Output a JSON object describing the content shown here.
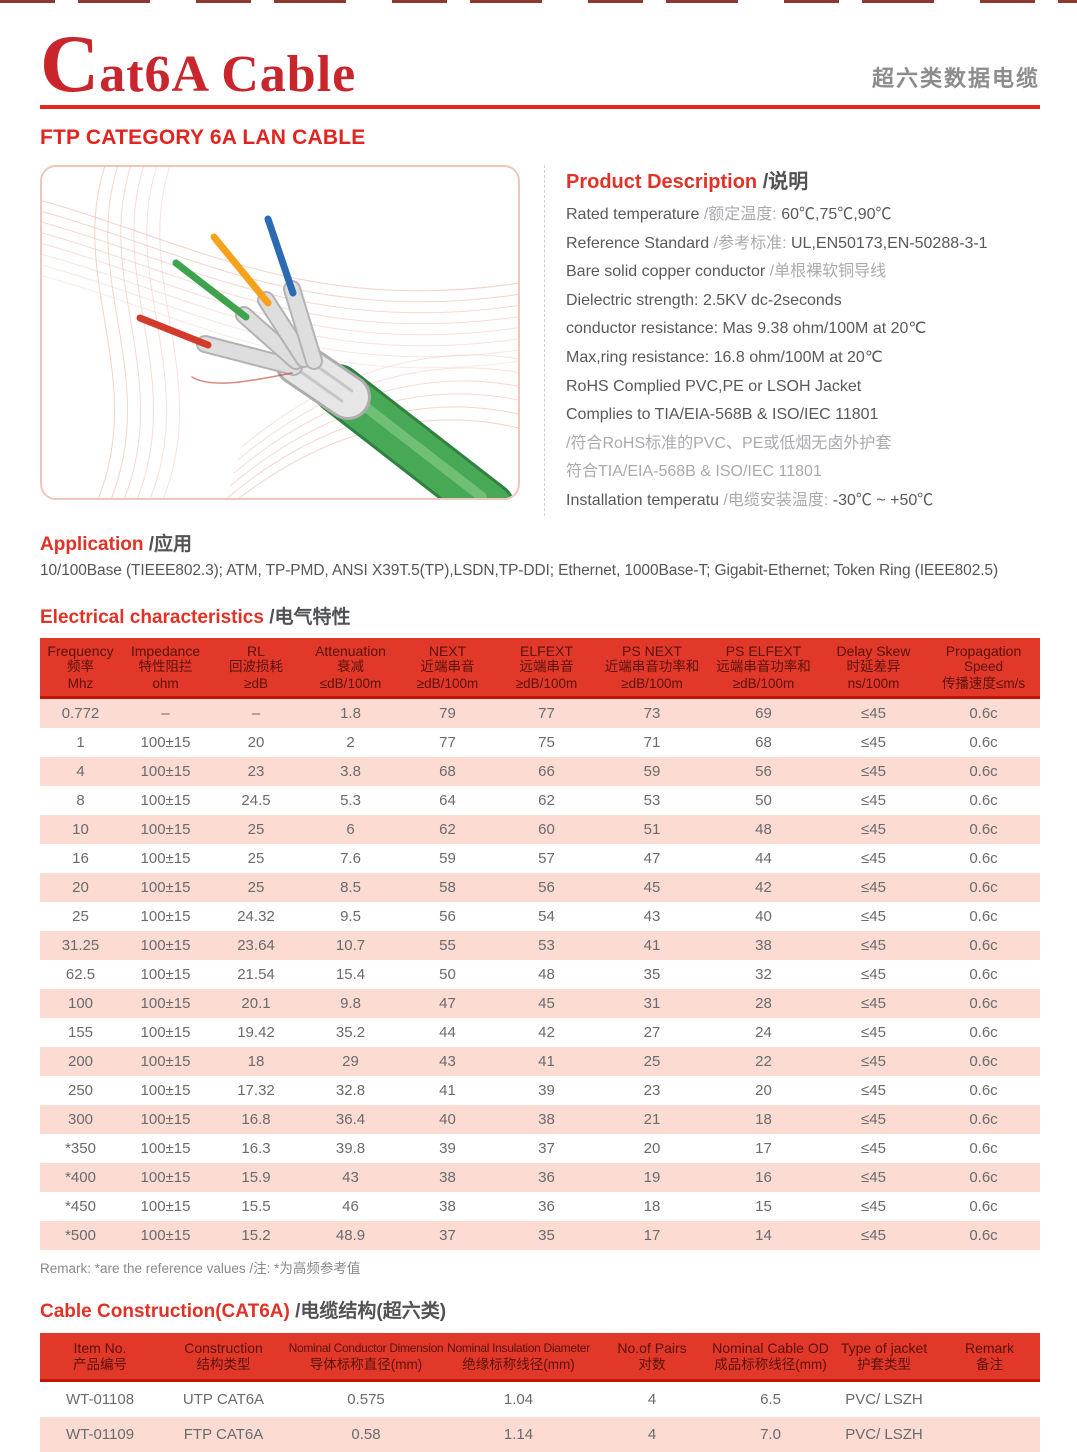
{
  "brand": {
    "initial": "C",
    "rest": "at6A Cable",
    "subtitle_zh": "超六类数据电缆"
  },
  "headings": {
    "product": "FTP CATEGORY 6A LAN CABLE",
    "description_en": "Product Description",
    "description_zh": "/说明",
    "application_en": "Application",
    "application_zh": " /应用",
    "electrical_en": "Electrical characteristics",
    "electrical_zh": " /电气特性",
    "construction_en": "Cable Construction(CAT6A)",
    "construction_zh": " /电缆结构(超六类)"
  },
  "description_lines": [
    [
      {
        "t": "Rated temperature "
      },
      {
        "t": "/额定温度: ",
        "m": 1
      },
      {
        "t": "60℃,75℃,90℃"
      }
    ],
    [
      {
        "t": "Reference Standard "
      },
      {
        "t": "/参考标准: ",
        "m": 1
      },
      {
        "t": "UL,EN50173,EN-50288-3-1"
      }
    ],
    [
      {
        "t": "Bare solid copper conductor "
      },
      {
        "t": "/单根裸软铜导线",
        "m": 1
      }
    ],
    [
      {
        "t": "Dielectric strength: 2.5KV dc-2seconds"
      }
    ],
    [
      {
        "t": "conductor resistance: Mas 9.38 ohm/100M at 20℃"
      }
    ],
    [
      {
        "t": "Max,ring resistance: 16.8 ohm/100M at 20℃"
      }
    ],
    [
      {
        "t": "RoHS Complied PVC,PE or LSOH Jacket"
      }
    ],
    [
      {
        "t": "Complies to TIA/EIA-568B & ISO/IEC 11801"
      }
    ],
    [
      {
        "t": "/符合RoHS标准的PVC、PE或低烟无卤外护套",
        "m": 1
      }
    ],
    [
      {
        "t": "符合TIA/EIA-568B & ISO/IEC 11801",
        "m": 1
      }
    ],
    [
      {
        "t": "Installation temperatu "
      },
      {
        "t": "/电缆安装温度: ",
        "m": 1
      },
      {
        "t": "-30℃ ~ +50℃"
      }
    ]
  ],
  "application_text": "10/100Base (TIEEE802.3); ATM, TP-PMD, ANSI X39T.5(TP),LSDN,TP-DDI; Ethernet, 1000Base-T; Gigabit-Ethernet; Token Ring (IEEE802.5)",
  "electrical_table": {
    "columns": [
      [
        "Frequency",
        "频率",
        "Mhz"
      ],
      [
        "Impedance",
        "特性阻拦",
        "ohm"
      ],
      [
        "RL",
        "回波损耗",
        "≥dB"
      ],
      [
        "Attenuation",
        "衰减",
        "≤dB/100m"
      ],
      [
        "NEXT",
        "近端串音",
        "≥dB/100m"
      ],
      [
        "ELFEXT",
        "远端串音",
        "≥dB/100m"
      ],
      [
        "PS NEXT",
        "近端串音功率和",
        "≥dB/100m"
      ],
      [
        "PS ELFEXT",
        "远端串音功率和",
        "≥dB/100m"
      ],
      [
        "Delay Skew",
        "时延差异",
        "ns/100m"
      ],
      [
        "Propagation",
        "Speed",
        "传播速度≤m/s"
      ]
    ],
    "rows": [
      [
        "0.772",
        "–",
        "–",
        "1.8",
        "79",
        "77",
        "73",
        "69",
        "≤45",
        "0.6c"
      ],
      [
        "1",
        "100±15",
        "20",
        "2",
        "77",
        "75",
        "71",
        "68",
        "≤45",
        "0.6c"
      ],
      [
        "4",
        "100±15",
        "23",
        "3.8",
        "68",
        "66",
        "59",
        "56",
        "≤45",
        "0.6c"
      ],
      [
        "8",
        "100±15",
        "24.5",
        "5.3",
        "64",
        "62",
        "53",
        "50",
        "≤45",
        "0.6c"
      ],
      [
        "10",
        "100±15",
        "25",
        "6",
        "62",
        "60",
        "51",
        "48",
        "≤45",
        "0.6c"
      ],
      [
        "16",
        "100±15",
        "25",
        "7.6",
        "59",
        "57",
        "47",
        "44",
        "≤45",
        "0.6c"
      ],
      [
        "20",
        "100±15",
        "25",
        "8.5",
        "58",
        "56",
        "45",
        "42",
        "≤45",
        "0.6c"
      ],
      [
        "25",
        "100±15",
        "24.32",
        "9.5",
        "56",
        "54",
        "43",
        "40",
        "≤45",
        "0.6c"
      ],
      [
        "31.25",
        "100±15",
        "23.64",
        "10.7",
        "55",
        "53",
        "41",
        "38",
        "≤45",
        "0.6c"
      ],
      [
        "62.5",
        "100±15",
        "21.54",
        "15.4",
        "50",
        "48",
        "35",
        "32",
        "≤45",
        "0.6c"
      ],
      [
        "100",
        "100±15",
        "20.1",
        "9.8",
        "47",
        "45",
        "31",
        "28",
        "≤45",
        "0.6c"
      ],
      [
        "155",
        "100±15",
        "19.42",
        "35.2",
        "44",
        "42",
        "27",
        "24",
        "≤45",
        "0.6c"
      ],
      [
        "200",
        "100±15",
        "18",
        "29",
        "43",
        "41",
        "25",
        "22",
        "≤45",
        "0.6c"
      ],
      [
        "250",
        "100±15",
        "17.32",
        "32.8",
        "41",
        "39",
        "23",
        "20",
        "≤45",
        "0.6c"
      ],
      [
        "300",
        "100±15",
        "16.8",
        "36.4",
        "40",
        "38",
        "21",
        "18",
        "≤45",
        "0.6c"
      ],
      [
        "*350",
        "100±15",
        "16.3",
        "39.8",
        "39",
        "37",
        "20",
        "17",
        "≤45",
        "0.6c"
      ],
      [
        "*400",
        "100±15",
        "15.9",
        "43",
        "38",
        "36",
        "19",
        "16",
        "≤45",
        "0.6c"
      ],
      [
        "*450",
        "100±15",
        "15.5",
        "46",
        "38",
        "36",
        "18",
        "15",
        "≤45",
        "0.6c"
      ],
      [
        "*500",
        "100±15",
        "15.2",
        "48.9",
        "37",
        "35",
        "17",
        "14",
        "≤45",
        "0.6c"
      ]
    ],
    "remark": "Remark: *are the reference values /注: *为高频参考值"
  },
  "construction_table": {
    "columns": [
      [
        "Item No.",
        "产品编号"
      ],
      [
        "Construction",
        "结构类型"
      ],
      [
        "Nominal Conductor Dimension",
        "导体标称直径(mm)"
      ],
      [
        "Nominal Insulation Diameter",
        "绝缘标称线径(mm)"
      ],
      [
        "No.of Pairs",
        "对数"
      ],
      [
        "Nominal Cable OD",
        "成品标称线径(mm)"
      ],
      [
        "Type of jacket",
        "护套类型"
      ],
      [
        "Remark",
        "备注"
      ]
    ],
    "rows": [
      [
        "WT-01108",
        "UTP CAT6A",
        "0.575",
        "1.04",
        "4",
        "6.5",
        "PVC/ LSZH",
        ""
      ],
      [
        "WT-01109",
        "FTP CAT6A",
        "0.58",
        "1.14",
        "4",
        "7.0",
        "PVC/ LSZH",
        ""
      ]
    ]
  },
  "colors": {
    "accent_red": "#E2382A",
    "brand_red": "#C9252C",
    "rule_red": "#E8271C",
    "row_pink": "#FBDBD2",
    "header_text": "#5A120A",
    "body_gray": "#58595B",
    "muted_gray": "#A9ABAE"
  }
}
